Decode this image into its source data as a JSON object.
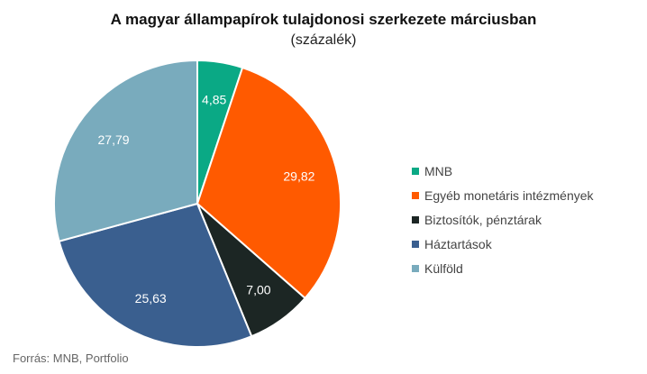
{
  "chart_data": {
    "type": "pie",
    "title": "A magyar állampapírok tulajdonosi szerkezete márciusban",
    "subtitle": "(százalék)",
    "slices": [
      {
        "label": "MNB",
        "value": 4.85,
        "value_label": "4,85",
        "color": "#0aa985"
      },
      {
        "label": "Egyéb monetáris intézmények",
        "value": 29.82,
        "value_label": "29,82",
        "color": "#ff5a00"
      },
      {
        "label": "Biztosítók, pénztárak",
        "value": 7.0,
        "value_label": "7,00",
        "color": "#1c2624"
      },
      {
        "label": "Háztartások",
        "value": 25.63,
        "value_label": "25,63",
        "color": "#3a5f8f"
      },
      {
        "label": "Külföld",
        "value": 27.79,
        "value_label": "27,79",
        "color": "#79abbd"
      }
    ],
    "legend_position": "right"
  },
  "source": "Forrás: MNB, Portfolio"
}
